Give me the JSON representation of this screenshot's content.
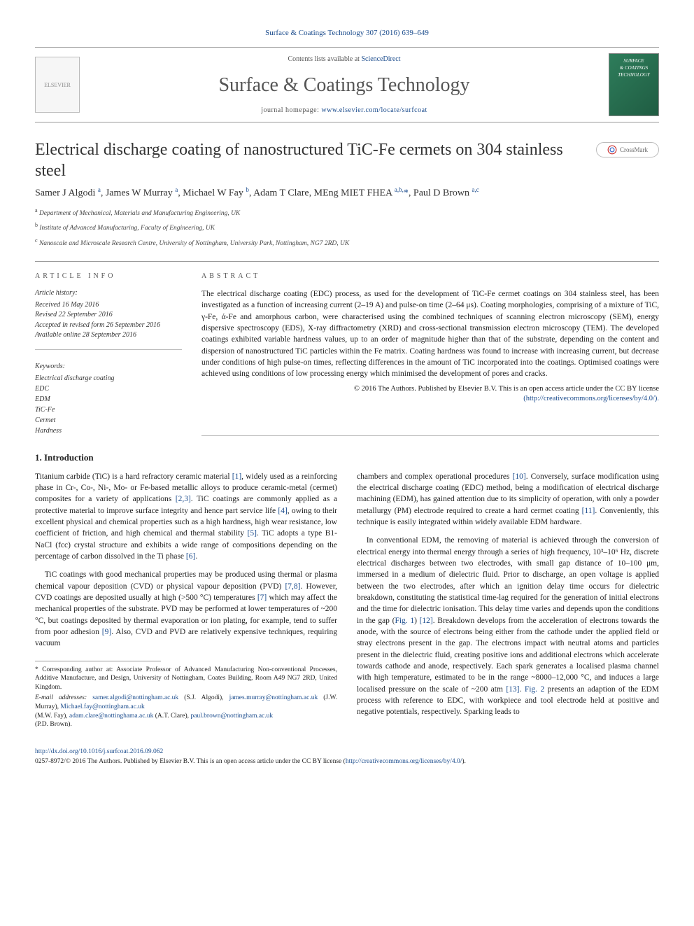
{
  "top_link_text": "Surface & Coatings Technology 307 (2016) 639–649",
  "header": {
    "contents_prefix": "Contents lists available at ",
    "contents_link": "ScienceDirect",
    "journal_title": "Surface & Coatings Technology",
    "homepage_prefix": "journal homepage: ",
    "homepage_link": "www.elsevier.com/locate/surfcoat",
    "cover_line1": "SURFACE",
    "cover_line2": "& COATINGS",
    "cover_line3": "TECHNOLOGY",
    "elsevier_label": "ELSEVIER"
  },
  "crossmark_label": "CrossMark",
  "title": "Electrical discharge coating of nanostructured TiC-Fe cermets on 304 stainless steel",
  "authors_html": "Samer J Algodi <sup>a</sup>, James W Murray <sup>a</sup>, Michael W Fay <sup>b</sup>, Adam T Clare, MEng MIET FHEA <sup>a,b,</sup><span class='star'>*</span>, Paul D Brown <sup>a,c</sup>",
  "affiliations": [
    {
      "sup": "a",
      "text": "Department of Mechanical, Materials and Manufacturing Engineering, UK"
    },
    {
      "sup": "b",
      "text": "Institute of Advanced Manufacturing, Faculty of Engineering, UK"
    },
    {
      "sup": "c",
      "text": "Nanoscale and Microscale Research Centre, University of Nottingham, University Park, Nottingham, NG7 2RD, UK"
    }
  ],
  "info_label": "ARTICLE INFO",
  "abstract_label": "ABSTRACT",
  "history": {
    "hdr": "Article history:",
    "l1": "Received 16 May 2016",
    "l2": "Revised 22 September 2016",
    "l3": "Accepted in revised form 26 September 2016",
    "l4": "Available online 28 September 2016"
  },
  "keywords": {
    "hdr": "Keywords:",
    "items": [
      "Electrical discharge coating",
      "EDC",
      "EDM",
      "TiC-Fe",
      "Cermet",
      "Hardness"
    ]
  },
  "abstract": "The electrical discharge coating (EDC) process, as used for the development of TiC-Fe cermet coatings on 304 stainless steel, has been investigated as a function of increasing current (2–19 A) and pulse-on time (2–64 μs). Coating morphologies, comprising of a mixture of TiC, γ-Fe, ά-Fe and amorphous carbon, were characterised using the combined techniques of scanning electron microscopy (SEM), energy dispersive spectroscopy (EDS), X-ray diffractometry (XRD) and cross-sectional transmission electron microscopy (TEM). The developed coatings exhibited variable hardness values, up to an order of magnitude higher than that of the substrate, depending on the content and dispersion of nanostructured TiC particles within the Fe matrix. Coating hardness was found to increase with increasing current, but decrease under conditions of high pulse-on times, reflecting differences in the amount of TiC incorporated into the coatings. Optimised coatings were achieved using conditions of low processing energy which minimised the development of pores and cracks.",
  "copyright_line1": "© 2016 The Authors. Published by Elsevier B.V. This is an open access article under the CC BY license",
  "copyright_link": "(http://creativecommons.org/licenses/by/4.0/).",
  "section1_title": "1. Introduction",
  "body": {
    "p1": "Titanium carbide (TiC) is a hard refractory ceramic material [1], widely used as a reinforcing phase in Cr-, Co-, Ni-, Mo- or Fe-based metallic alloys to produce ceramic-metal (cermet) composites for a variety of applications [2,3]. TiC coatings are commonly applied as a protective material to improve surface integrity and hence part service life [4], owing to their excellent physical and chemical properties such as a high hardness, high wear resistance, low coefficient of friction, and high chemical and thermal stability [5]. TiC adopts a type B1-NaCl (fcc) crystal structure and exhibits a wide range of compositions depending on the percentage of carbon dissolved in the Ti phase [6].",
    "p2": "TiC coatings with good mechanical properties may be produced using thermal or plasma chemical vapour deposition (CVD) or physical vapour deposition (PVD) [7,8]. However, CVD coatings are deposited usually at high (>500 °C) temperatures [7] which may affect the mechanical properties of the substrate. PVD may be performed at lower temperatures of ~200 °C, but coatings deposited by thermal evaporation or ion plating, for example, tend to suffer from poor adhesion [9]. Also, CVD and PVD are relatively expensive techniques, requiring vacuum",
    "p3": "chambers and complex operational procedures [10]. Conversely, surface modification using the electrical discharge coating (EDC) method, being a modification of electrical discharge machining (EDM), has gained attention due to its simplicity of operation, with only a powder metallurgy (PM) electrode required to create a hard cermet coating [11]. Conveniently, this technique is easily integrated within widely available EDM hardware.",
    "p4": "In conventional EDM, the removing of material is achieved through the conversion of electrical energy into thermal energy through a series of high frequency, 10³–10⁶ Hz, discrete electrical discharges between two electrodes, with small gap distance of 10–100 μm, immersed in a medium of dielectric fluid. Prior to discharge, an open voltage is applied between the two electrodes, after which an ignition delay time occurs for dielectric breakdown, constituting the statistical time-lag required for the generation of initial electrons and the time for dielectric ionisation. This delay time varies and depends upon the conditions in the gap (Fig. 1) [12]. Breakdown develops from the acceleration of electrons towards the anode, with the source of electrons being either from the cathode under the applied field or stray electrons present in the gap. The electrons impact with neutral atoms and particles present in the dielectric fluid, creating positive ions and additional electrons which accelerate towards cathode and anode, respectively. Each spark generates a localised plasma channel with high temperature, estimated to be in the range ~8000–12,000 °C, and induces a large localised pressure on the scale of ~200 atm [13]. Fig. 2 presents an adaption of the EDM process with reference to EDC, with workpiece and tool electrode held at positive and negative potentials, respectively. Sparking leads to"
  },
  "footnotes": {
    "corr": "* Corresponding author at: Associate Professor of Advanced Manufacturing Non-conventional Processes, Additive Manufacture, and Design, University of Nottingham, Coates Building, Room A49 NG7 2RD, United Kingdom.",
    "emails_label": "E-mail addresses: ",
    "e1": "samer.algodi@nottingham.ac.uk",
    "e1n": " (S.J. Algodi), ",
    "e2": "james.murray@nottingham.ac.uk",
    "e2n": " (J.W. Murray), ",
    "e3": "Michael.fay@nottingham.ac.uk",
    "e3n": " (M.W. Fay), ",
    "e4": "adam.clare@nottinghama.ac.uk",
    "e4n": " (A.T. Clare), ",
    "e5": "paul.brown@nottingham.ac.uk",
    "e5n": " (P.D. Brown)."
  },
  "bottom": {
    "doi": "http://dx.doi.org/10.1016/j.surfcoat.2016.09.062",
    "issn_line": "0257-8972/© 2016 The Authors. Published by Elsevier B.V. This is an open access article under the CC BY license (",
    "cc_link": "http://creativecommons.org/licenses/by/4.0/",
    "close": ")."
  }
}
